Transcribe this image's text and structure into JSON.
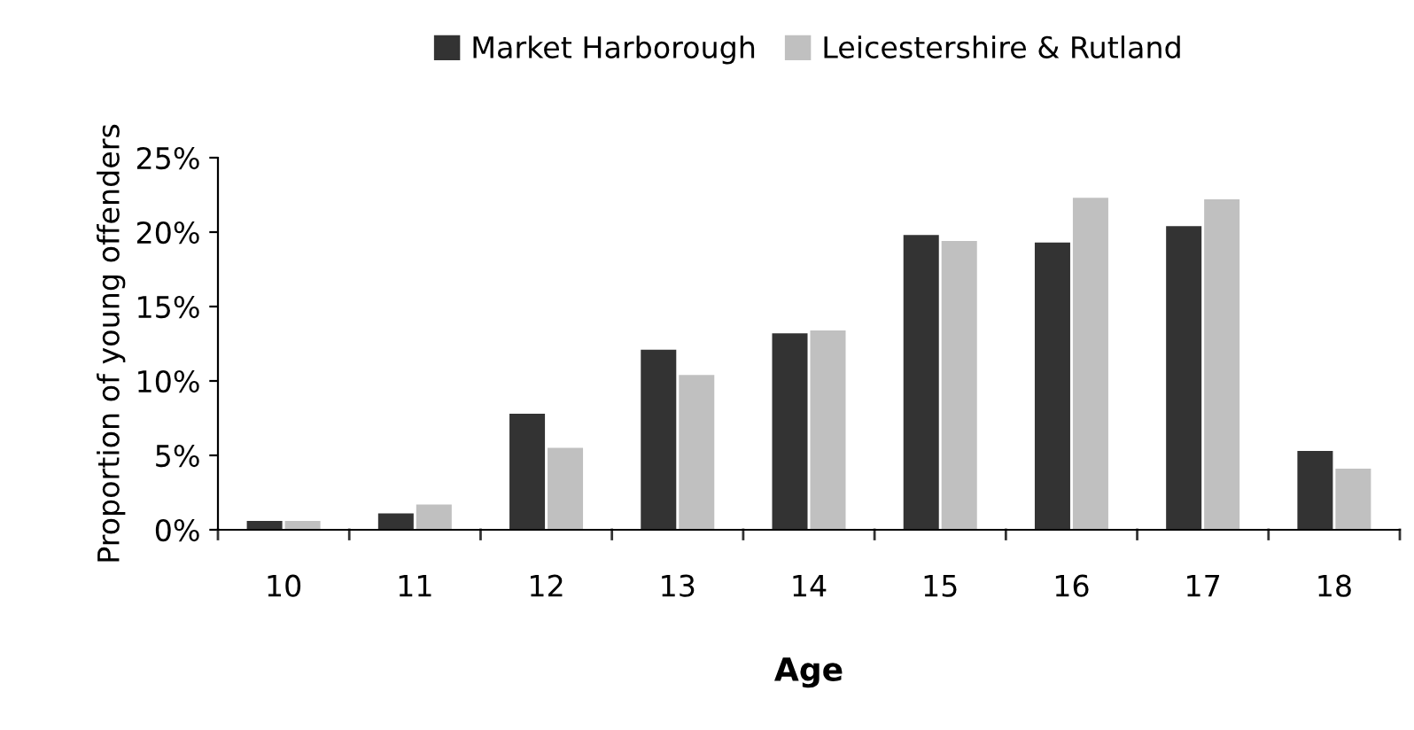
{
  "chart_data": {
    "type": "bar",
    "xlabel": "Age",
    "ylabel": "Proportion of young offenders",
    "categories": [
      "10",
      "11",
      "12",
      "13",
      "14",
      "15",
      "16",
      "17",
      "18"
    ],
    "series": [
      {
        "name": "Market Harborough",
        "color": "#333333",
        "values": [
          0.6,
          1.1,
          7.8,
          12.1,
          13.2,
          19.8,
          19.3,
          20.4,
          5.3
        ]
      },
      {
        "name": "Leicestershire & Rutland",
        "color": "#c0c0c0",
        "values": [
          0.6,
          1.7,
          5.5,
          10.4,
          13.4,
          19.4,
          22.3,
          22.2,
          4.1
        ]
      }
    ],
    "ylim": [
      0,
      25
    ],
    "yticks": [
      {
        "value": 0,
        "label": "0%"
      },
      {
        "value": 5,
        "label": "5%"
      },
      {
        "value": 10,
        "label": "10%"
      },
      {
        "value": 15,
        "label": "15%"
      },
      {
        "value": 20,
        "label": "20%"
      },
      {
        "value": 25,
        "label": "25%"
      }
    ],
    "grid": false,
    "legend": "top"
  }
}
